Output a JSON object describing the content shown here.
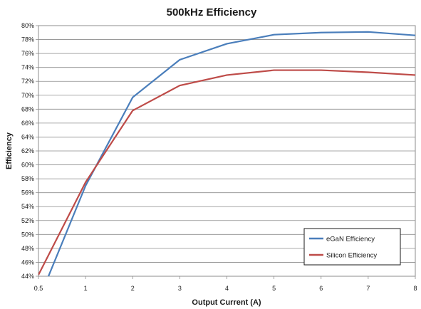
{
  "chart_data": {
    "type": "line",
    "title": "500kHz Efficiency",
    "xlabel": "Output Current (A)",
    "ylabel": "Efficiency",
    "x_ticks": [
      0.5,
      1,
      2,
      3,
      4,
      5,
      6,
      7,
      8
    ],
    "y_ticks": [
      "44%",
      "46%",
      "48%",
      "50%",
      "52%",
      "54%",
      "56%",
      "58%",
      "60%",
      "62%",
      "64%",
      "66%",
      "68%",
      "70%",
      "72%",
      "74%",
      "76%",
      "78%",
      "80%"
    ],
    "ylim": [
      44,
      80
    ],
    "grid": true,
    "legend_position": "bottom-right",
    "series": [
      {
        "name": "eGaN Efficiency",
        "color": "#4a7ebb",
        "x": [
          0.5,
          1,
          2,
          3,
          4,
          5,
          6,
          7,
          8
        ],
        "y": [
          40.5,
          57.0,
          69.7,
          75.1,
          77.4,
          78.7,
          79.0,
          79.1,
          78.6
        ]
      },
      {
        "name": "Silicon Efficiency",
        "color": "#be4b48",
        "x": [
          0.5,
          1,
          2,
          3,
          4,
          5,
          6,
          7,
          8
        ],
        "y": [
          44.2,
          57.5,
          67.8,
          71.4,
          72.9,
          73.6,
          73.6,
          73.3,
          72.9
        ]
      }
    ]
  }
}
